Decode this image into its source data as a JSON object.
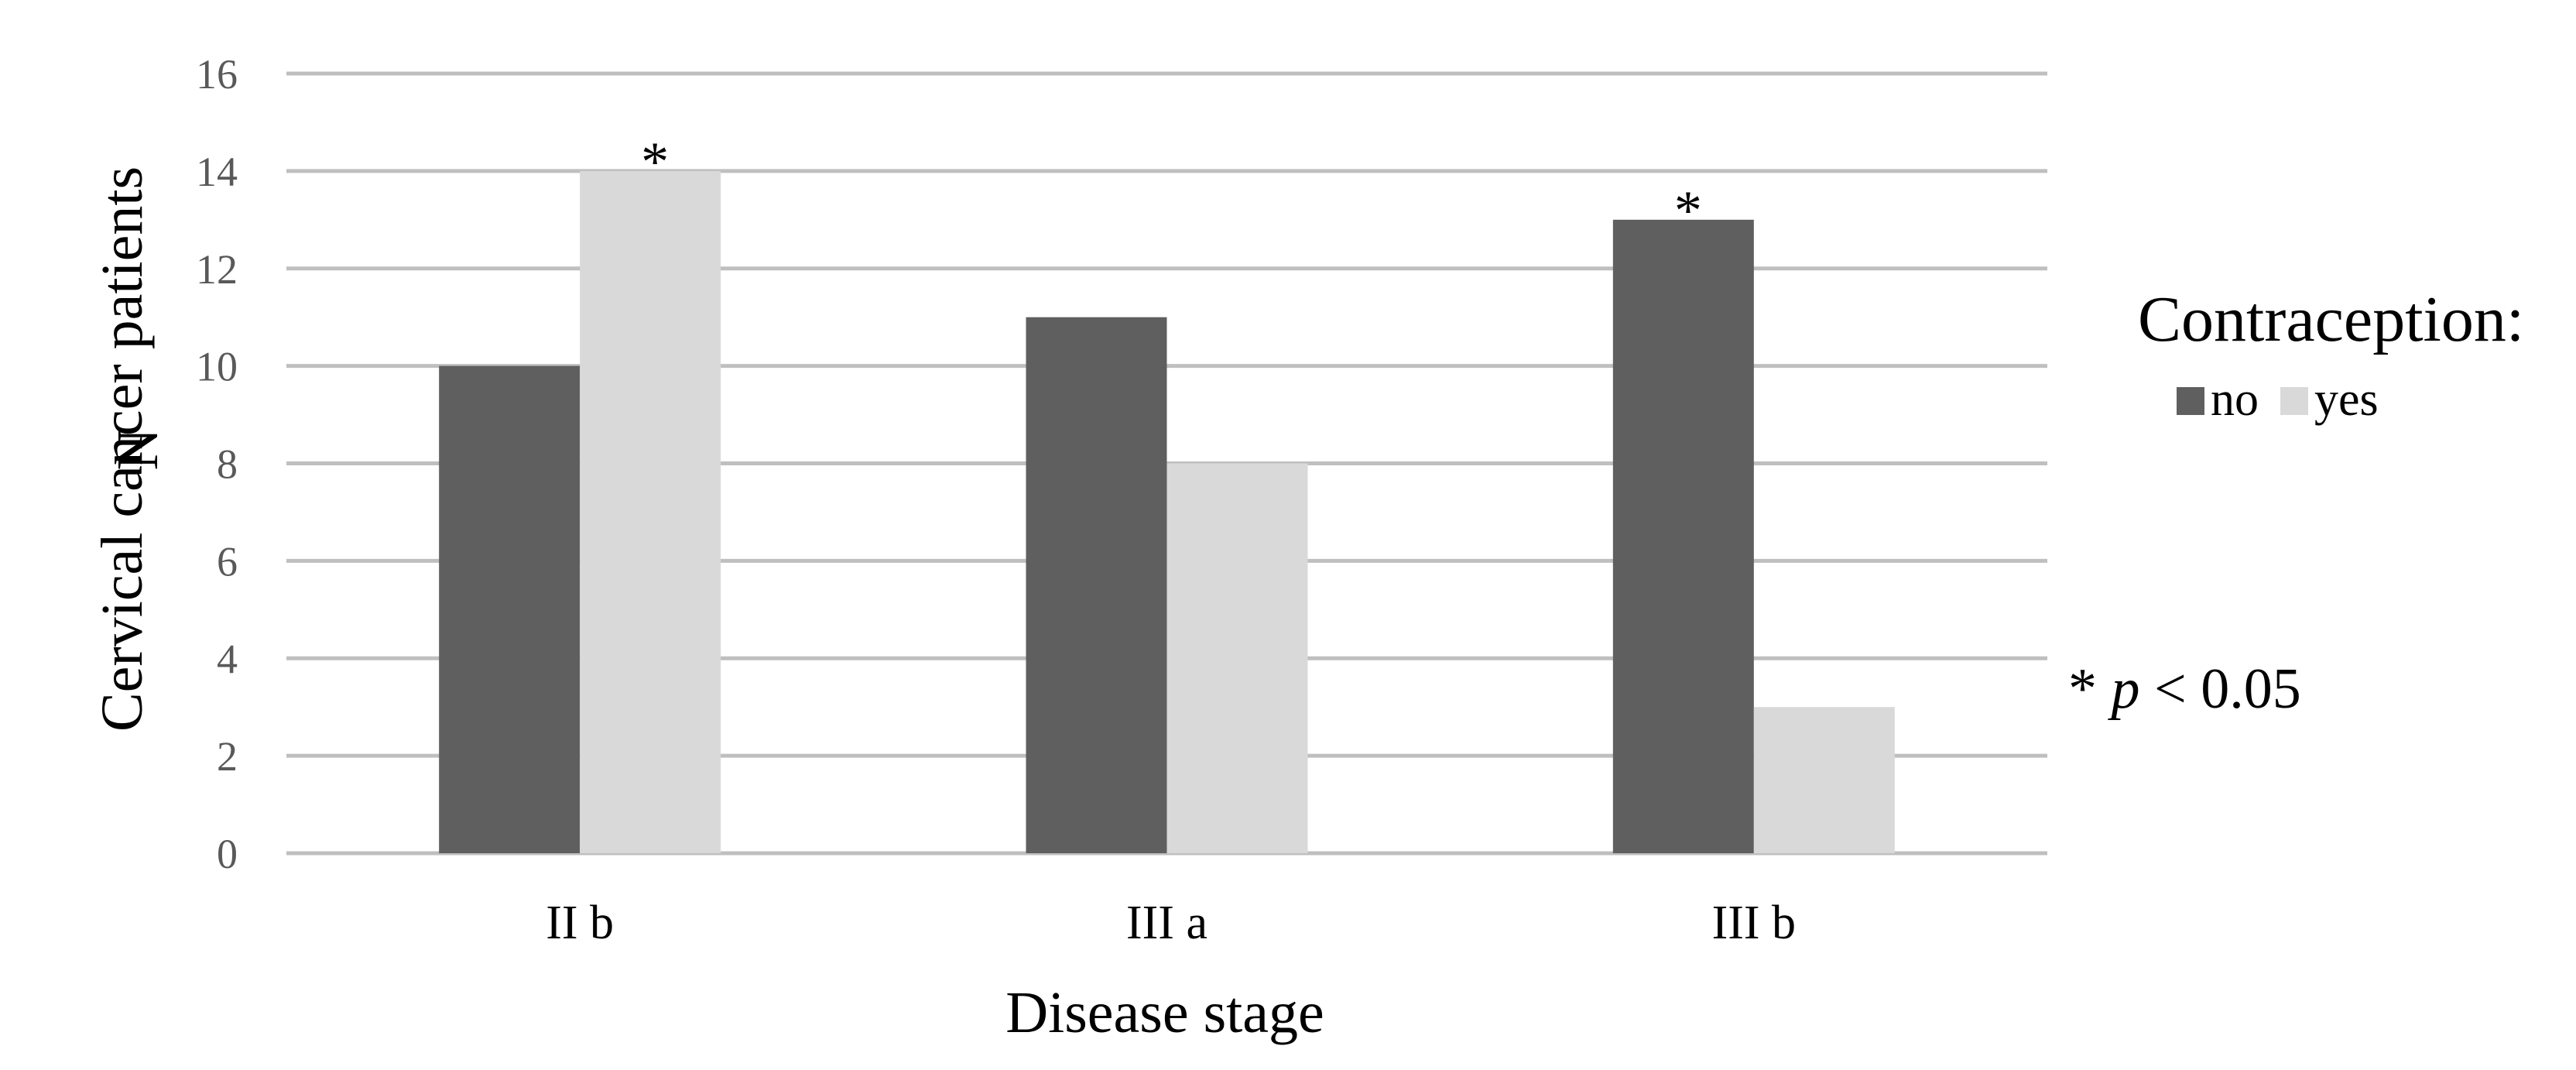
{
  "chart_data": {
    "type": "bar",
    "categories": [
      "II b",
      "III a",
      "III b"
    ],
    "series": [
      {
        "name": "no",
        "values": [
          10,
          11,
          13
        ],
        "color": "#5f5f5f"
      },
      {
        "name": "yes",
        "values": [
          14,
          8,
          3
        ],
        "color": "#d9d9d9"
      }
    ],
    "xlabel": "Disease stage",
    "ylabel_line1": "Cervical cancer patients",
    "ylabel_line2": "N",
    "ylim": [
      0,
      16
    ],
    "yticks": [
      0,
      2,
      4,
      6,
      8,
      10,
      12,
      14,
      16
    ],
    "grid": true,
    "gridline_color": "#bfbfbf",
    "legend_title": "Contraception:",
    "legend_placement": "right",
    "significance_marks": [
      {
        "category": "II b",
        "series": "yes",
        "mark": "*"
      },
      {
        "category": "III b",
        "series": "no",
        "mark": "*"
      }
    ],
    "note": {
      "prefix": "* ",
      "p": "p",
      "suffix": " < 0.05"
    }
  }
}
